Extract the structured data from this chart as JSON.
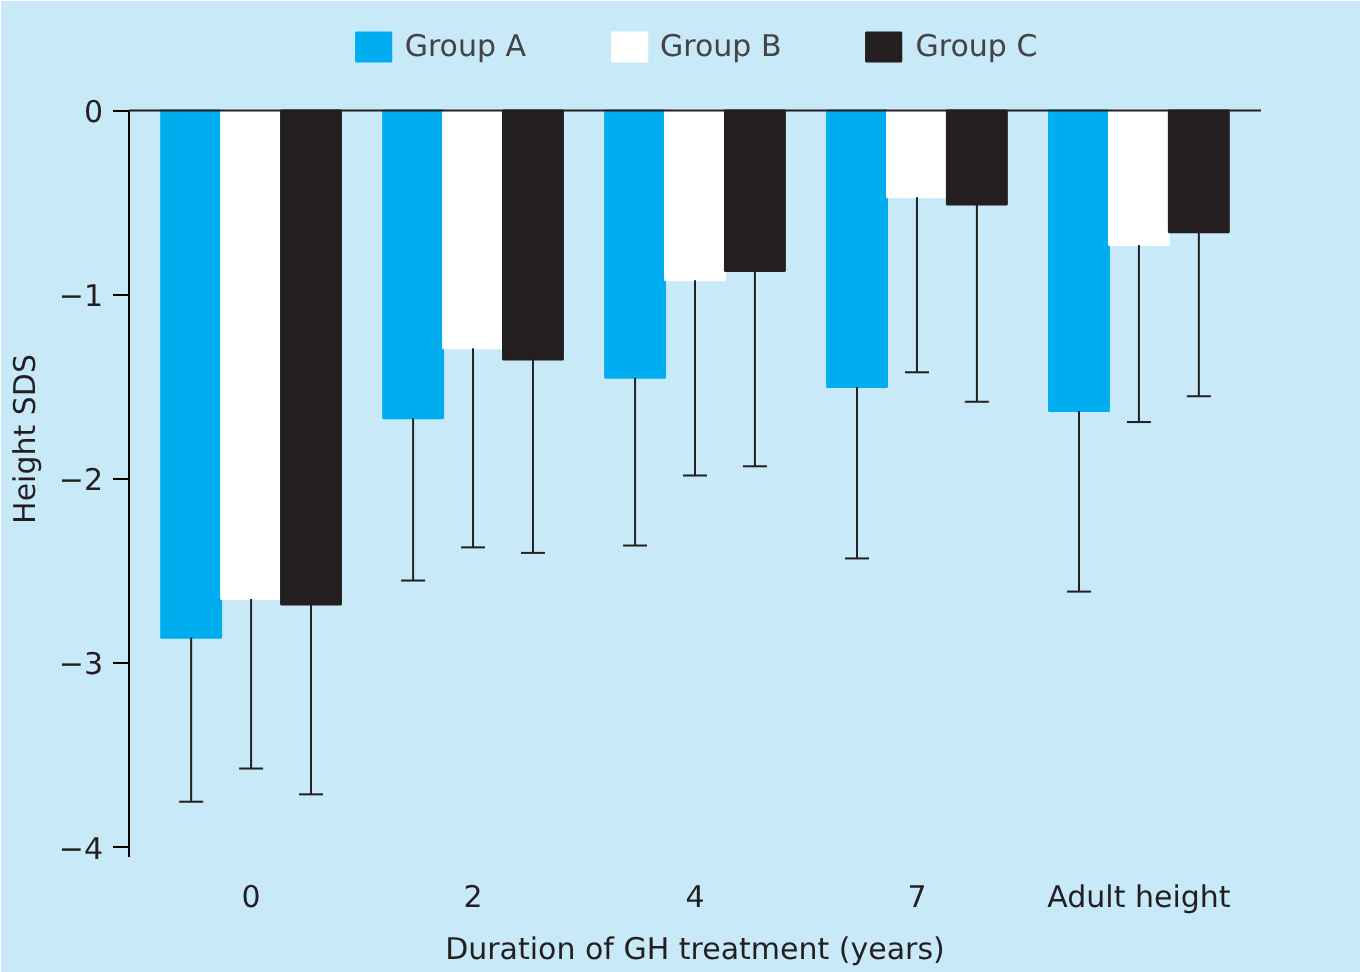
{
  "chart_data": {
    "type": "bar",
    "xlabel": "Duration of GH treatment (years)",
    "ylabel": "Height SDS",
    "categories": [
      "0",
      "2",
      "4",
      "7",
      "Adult height"
    ],
    "series": [
      {
        "name": "Group A",
        "color": "#00aeef",
        "values": [
          -2.86,
          -1.67,
          -1.45,
          -1.5,
          -1.63
        ],
        "errors": [
          [
            -3.75,
            -2.86
          ],
          [
            -2.55,
            -1.67
          ],
          [
            -2.36,
            -1.45
          ],
          [
            -2.43,
            -1.5
          ],
          [
            -2.61,
            -1.63
          ]
        ]
      },
      {
        "name": "Group B",
        "color": "#ffffff",
        "values": [
          -2.65,
          -1.29,
          -0.92,
          -0.47,
          -0.73
        ],
        "errors": [
          [
            -3.57,
            -2.65
          ],
          [
            -2.37,
            -1.29
          ],
          [
            -1.98,
            -0.92
          ],
          [
            -1.42,
            -0.47
          ],
          [
            -1.69,
            -0.73
          ]
        ]
      },
      {
        "name": "Group C",
        "color": "#231f20",
        "values": [
          -2.68,
          -1.35,
          -0.87,
          -0.51,
          -0.66
        ],
        "errors": [
          [
            -3.71,
            -2.68
          ],
          [
            -2.4,
            -1.35
          ],
          [
            -1.93,
            -0.87
          ],
          [
            -1.58,
            -0.51
          ],
          [
            -1.55,
            -0.66
          ]
        ]
      }
    ],
    "ylim": [
      -4.05,
      0
    ],
    "yticks": [
      {
        "value": 0,
        "label": "0"
      },
      {
        "value": -1,
        "label": "−1"
      },
      {
        "value": -2,
        "label": "−2"
      },
      {
        "value": -3,
        "label": "−3"
      },
      {
        "value": -4,
        "label": "−4"
      }
    ],
    "grid": false,
    "legend": "top"
  }
}
